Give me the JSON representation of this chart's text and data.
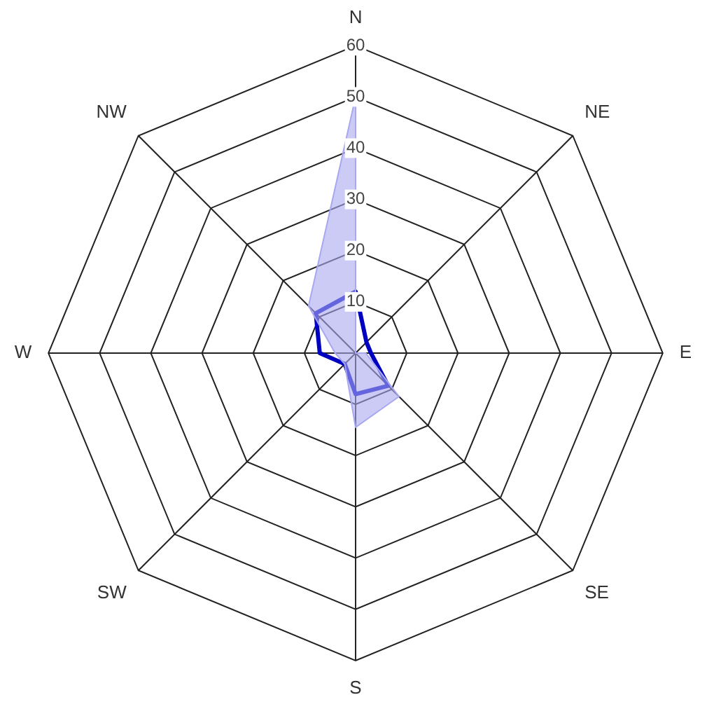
{
  "chart_data": {
    "type": "radar",
    "categories": [
      "N",
      "NE",
      "E",
      "SE",
      "S",
      "SW",
      "W",
      "NW"
    ],
    "series": [
      {
        "type": "area",
        "color": "#a8a8f0",
        "values": [
          50,
          0,
          2,
          12,
          14.5,
          3,
          4,
          13
        ]
      },
      {
        "color": "#0000c0",
        "values": [
          12,
          3,
          3,
          9,
          8,
          3,
          7,
          11
        ]
      }
    ],
    "ylim": [
      0,
      60
    ],
    "yticks": [
      10,
      20,
      30,
      40,
      50,
      60
    ],
    "grid": true,
    "legend": false,
    "marker": "none",
    "line_style": "solid"
  }
}
